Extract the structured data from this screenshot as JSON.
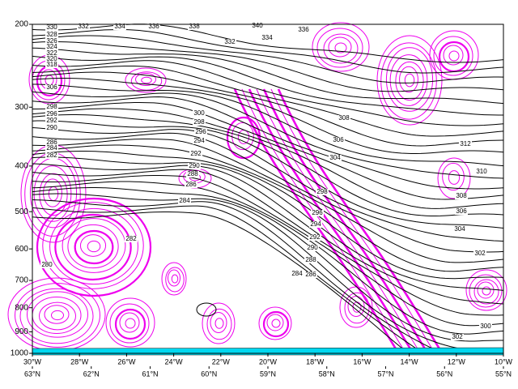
{
  "chart_data": {
    "type": "contour",
    "ylim": [
      1000,
      200
    ],
    "yscale": "log",
    "yticks": [
      200,
      300,
      400,
      500,
      600,
      700,
      800,
      900,
      1000
    ],
    "xlim": [
      -30,
      -10
    ],
    "xticks": [
      {
        "value": -30,
        "label": "30°W"
      },
      {
        "value": -28,
        "label": "28°W"
      },
      {
        "value": -26,
        "label": "26°W"
      },
      {
        "value": -24,
        "label": "24°W"
      },
      {
        "value": -22,
        "label": "22°W"
      },
      {
        "value": -20,
        "label": "20°W"
      },
      {
        "value": -18,
        "label": "18°W"
      },
      {
        "value": -16,
        "label": "16°W"
      },
      {
        "value": -14,
        "label": "14°W"
      },
      {
        "value": -12,
        "label": "12°W"
      },
      {
        "value": -10,
        "label": "10°W"
      }
    ],
    "x2lim": [
      63,
      55
    ],
    "x2ticks": [
      {
        "value": 63,
        "label": "63°N"
      },
      {
        "value": 62,
        "label": "62°N"
      },
      {
        "value": 61,
        "label": "61°N"
      },
      {
        "value": 60,
        "label": "60°N"
      },
      {
        "value": 59,
        "label": "59°N"
      },
      {
        "value": 58,
        "label": "58°N"
      },
      {
        "value": 57,
        "label": "57°N"
      },
      {
        "value": 56,
        "label": "56°N"
      },
      {
        "value": 55,
        "label": "55°N"
      }
    ],
    "contour_color": "#000000",
    "shading_color": "#ee00ee",
    "ground_color": "#00d8f0",
    "contour_labels": [
      330,
      332,
      334,
      336,
      338,
      340,
      336,
      332,
      334,
      328,
      326,
      324,
      322,
      320,
      318,
      306,
      298,
      296,
      292,
      290,
      286,
      284,
      282,
      300,
      298,
      296,
      294,
      292,
      290,
      288,
      286,
      284,
      312,
      310,
      308,
      306,
      304,
      302,
      300,
      302,
      304,
      306,
      308,
      282,
      280,
      298,
      296,
      294,
      292,
      290,
      288,
      286,
      284
    ]
  }
}
